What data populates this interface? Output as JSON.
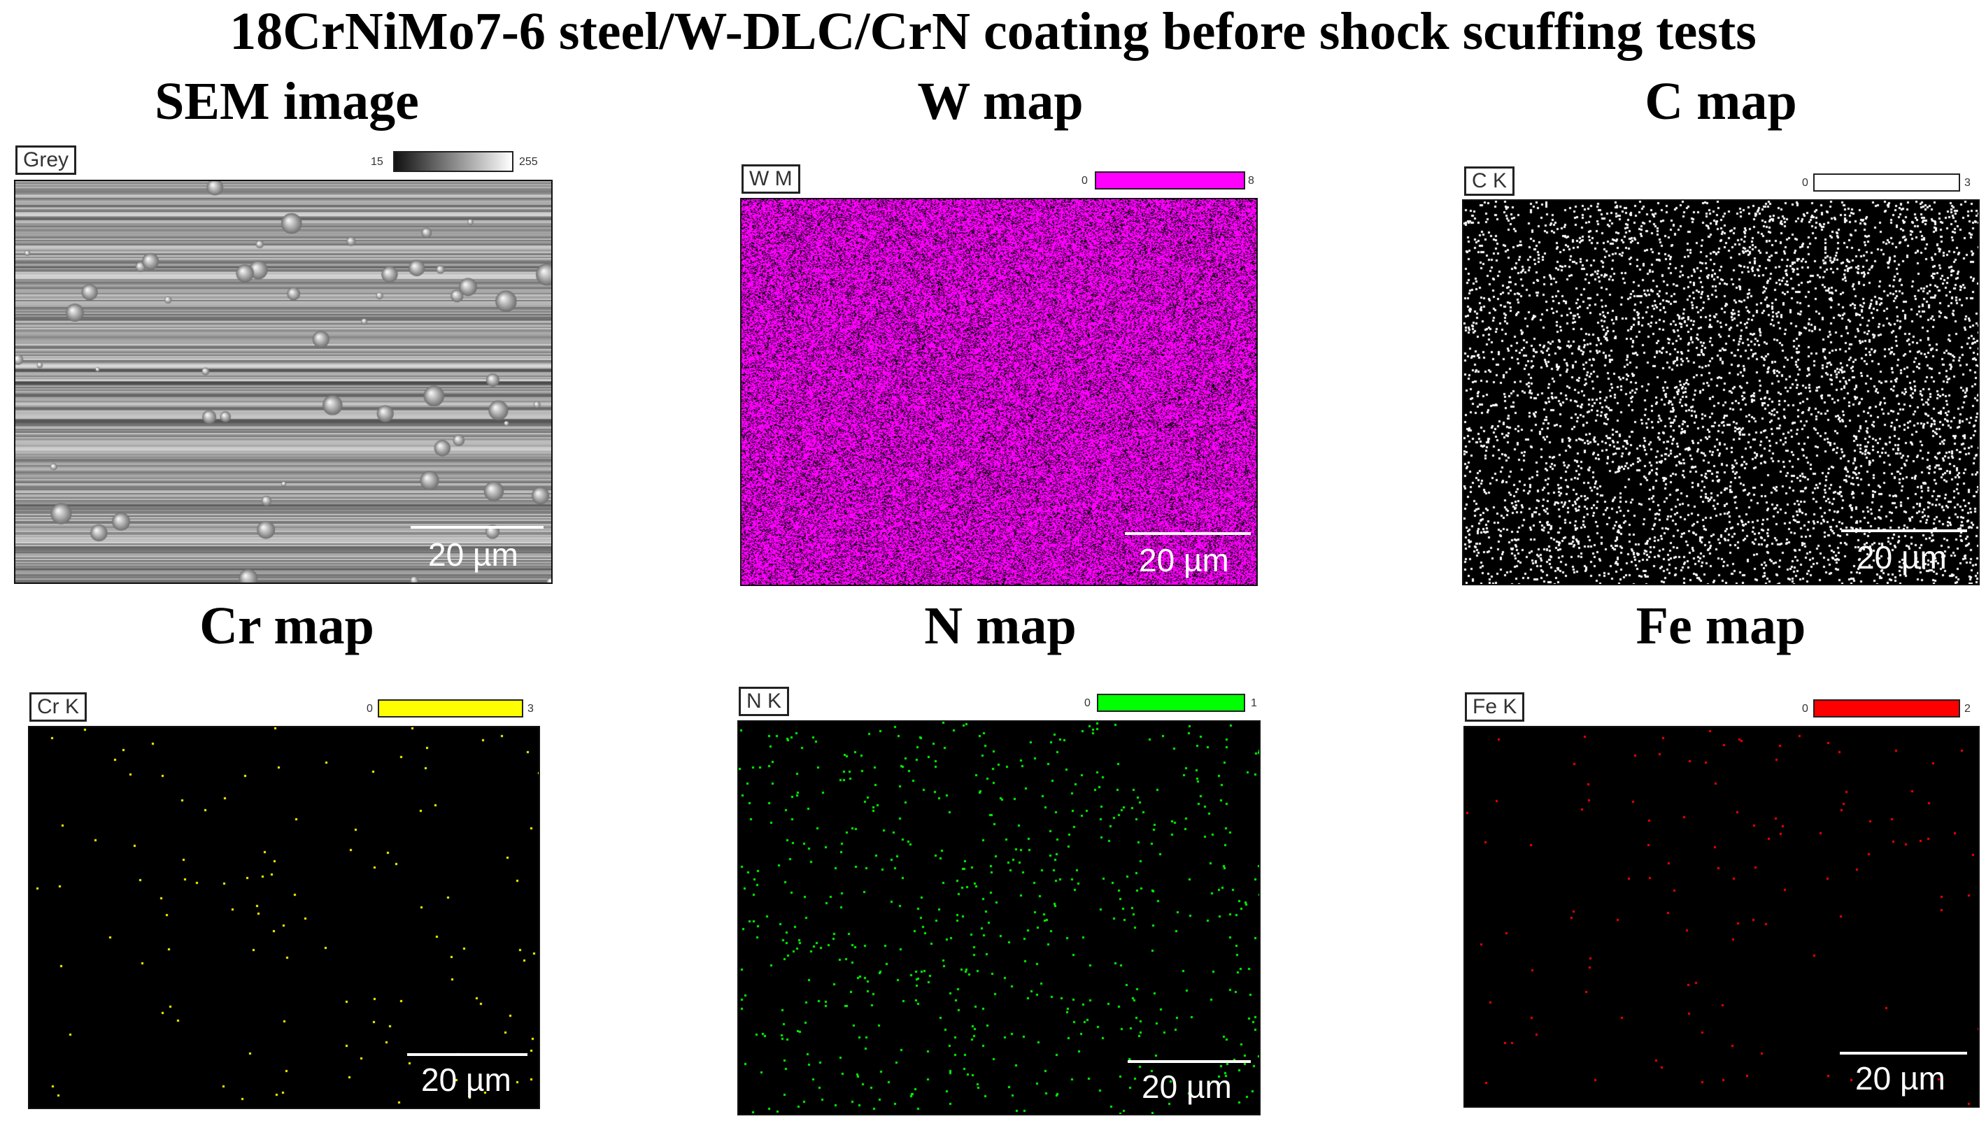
{
  "figure_title": "18CrNiMo7-6 steel/W-DLC/CrN coating before shock scuffing tests",
  "panels": [
    {
      "title": "SEM image",
      "tag": "Grey",
      "scale_min": "15",
      "scale_max": "255",
      "scale_bar": "20 µm",
      "color": "#ffffff",
      "kind": "sem"
    },
    {
      "title": "W map",
      "tag": "W M",
      "scale_min": "0",
      "scale_max": "8",
      "scale_bar": "20 µm",
      "color": "#ff00ff",
      "kind": "dense"
    },
    {
      "title": "C map",
      "tag": "C K",
      "scale_min": "0",
      "scale_max": "3",
      "scale_bar": "20 µm",
      "color": "#ffffff",
      "kind": "medium"
    },
    {
      "title": "Cr map",
      "tag": "Cr K",
      "scale_min": "0",
      "scale_max": "3",
      "scale_bar": "20 µm",
      "color": "#ffff00",
      "kind": "sparse"
    },
    {
      "title": "N map",
      "tag": "N K",
      "scale_min": "0",
      "scale_max": "1",
      "scale_bar": "20 µm",
      "color": "#00ff00",
      "kind": "light"
    },
    {
      "title": "Fe map",
      "tag": "Fe K",
      "scale_min": "0",
      "scale_max": "2",
      "scale_bar": "20 µm",
      "color": "#ff0000",
      "kind": "sparse"
    }
  ]
}
